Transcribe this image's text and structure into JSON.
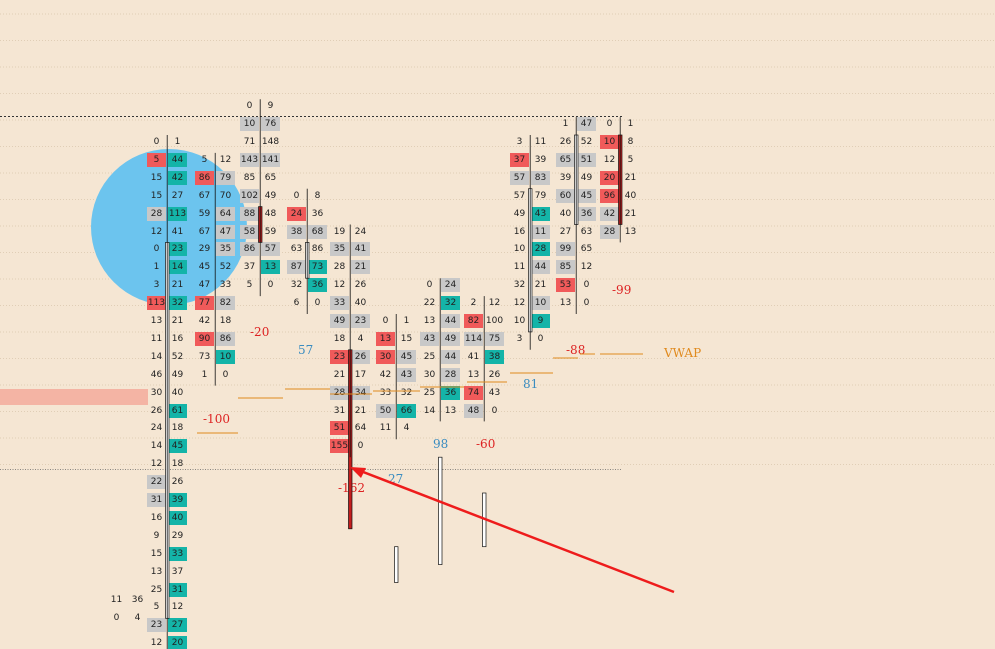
{
  "colors": {
    "background": "#f5e6d3",
    "bid_heavy": "#f05a5a",
    "ask_heavy": "#14b4a8",
    "neutral": "#c8c8c8",
    "negative_delta": "#dd2222",
    "positive_delta": "#3a8cc0",
    "vwap": "#e08a1e",
    "arrow": "#ee1c1c",
    "circle": "#6cc4ee",
    "price_band": "#f4b4a4"
  },
  "vwap_label": "VWAP",
  "columns": [
    {
      "id": "c1",
      "rows": [
        {
          "b": "11",
          "a": "36",
          "bs": "",
          "as": ""
        },
        {
          "b": "0",
          "a": "4",
          "bs": "",
          "as": ""
        }
      ],
      "delta": ""
    },
    {
      "id": "c2",
      "rows": [
        {
          "b": "0",
          "a": "1",
          "bs": "",
          "as": ""
        },
        {
          "b": "5",
          "a": "44",
          "bs": "r",
          "as": "t"
        },
        {
          "b": "15",
          "a": "42",
          "bs": "",
          "as": "t"
        },
        {
          "b": "15",
          "a": "27",
          "bs": "",
          "as": ""
        },
        {
          "b": "28",
          "a": "113",
          "bs": "g",
          "as": "t"
        },
        {
          "b": "12",
          "a": "41",
          "bs": "",
          "as": ""
        },
        {
          "b": "0",
          "a": "23",
          "bs": "",
          "as": "t"
        },
        {
          "b": "1",
          "a": "14",
          "bs": "",
          "as": "t"
        },
        {
          "b": "3",
          "a": "21",
          "bs": "",
          "as": ""
        },
        {
          "b": "113",
          "a": "32",
          "bs": "r",
          "as": "t"
        },
        {
          "b": "13",
          "a": "21",
          "bs": "",
          "as": ""
        },
        {
          "b": "11",
          "a": "16",
          "bs": "",
          "as": ""
        },
        {
          "b": "14",
          "a": "52",
          "bs": "",
          "as": ""
        },
        {
          "b": "46",
          "a": "49",
          "bs": "",
          "as": ""
        },
        {
          "b": "30",
          "a": "40",
          "bs": "",
          "as": ""
        },
        {
          "b": "26",
          "a": "61",
          "bs": "",
          "as": "t"
        },
        {
          "b": "24",
          "a": "18",
          "bs": "",
          "as": ""
        },
        {
          "b": "14",
          "a": "45",
          "bs": "",
          "as": "t"
        },
        {
          "b": "12",
          "a": "18",
          "bs": "",
          "as": ""
        },
        {
          "b": "22",
          "a": "26",
          "bs": "g",
          "as": ""
        },
        {
          "b": "31",
          "a": "39",
          "bs": "g",
          "as": "t"
        },
        {
          "b": "16",
          "a": "40",
          "bs": "",
          "as": "t"
        },
        {
          "b": "9",
          "a": "29",
          "bs": "",
          "as": ""
        },
        {
          "b": "15",
          "a": "33",
          "bs": "",
          "as": "t"
        },
        {
          "b": "13",
          "a": "37",
          "bs": "",
          "as": ""
        },
        {
          "b": "25",
          "a": "31",
          "bs": "",
          "as": "t"
        },
        {
          "b": "5",
          "a": "12",
          "bs": "",
          "as": ""
        },
        {
          "b": "23",
          "a": "27",
          "bs": "g",
          "as": "t"
        },
        {
          "b": "12",
          "a": "20",
          "bs": "",
          "as": "t"
        }
      ],
      "delta": "-100"
    },
    {
      "id": "c3",
      "rows": [
        {
          "b": "5",
          "a": "12",
          "bs": "",
          "as": ""
        },
        {
          "b": "86",
          "a": "79",
          "bs": "r",
          "as": "g"
        },
        {
          "b": "67",
          "a": "70",
          "bs": "",
          "as": ""
        },
        {
          "b": "59",
          "a": "64",
          "bs": "",
          "as": "g"
        },
        {
          "b": "67",
          "a": "47",
          "bs": "",
          "as": "g"
        },
        {
          "b": "29",
          "a": "35",
          "bs": "",
          "as": "g"
        },
        {
          "b": "45",
          "a": "52",
          "bs": "",
          "as": ""
        },
        {
          "b": "47",
          "a": "33",
          "bs": "",
          "as": ""
        },
        {
          "b": "77",
          "a": "82",
          "bs": "r",
          "as": "g"
        },
        {
          "b": "42",
          "a": "18",
          "bs": "",
          "as": ""
        },
        {
          "b": "90",
          "a": "86",
          "bs": "r",
          "as": "g"
        },
        {
          "b": "73",
          "a": "10",
          "bs": "",
          "as": "t"
        },
        {
          "b": "1",
          "a": "0",
          "bs": "",
          "as": ""
        }
      ],
      "delta": "-20"
    },
    {
      "id": "c4",
      "rows": [
        {
          "b": "0",
          "a": "9",
          "bs": "",
          "as": ""
        },
        {
          "b": "10",
          "a": "76",
          "bs": "g",
          "as": "g"
        },
        {
          "b": "71",
          "a": "148",
          "bs": "",
          "as": ""
        },
        {
          "b": "143",
          "a": "141",
          "bs": "g",
          "as": "g"
        },
        {
          "b": "85",
          "a": "65",
          "bs": "",
          "as": ""
        },
        {
          "b": "102",
          "a": "49",
          "bs": "g",
          "as": ""
        },
        {
          "b": "88",
          "a": "48",
          "bs": "g",
          "as": ""
        },
        {
          "b": "58",
          "a": "59",
          "bs": "g",
          "as": ""
        },
        {
          "b": "86",
          "a": "57",
          "bs": "g",
          "as": "g"
        },
        {
          "b": "37",
          "a": "13",
          "bs": "",
          "as": "t"
        },
        {
          "b": "5",
          "a": "0",
          "bs": "",
          "as": ""
        }
      ],
      "delta": "57"
    },
    {
      "id": "c5",
      "rows": [
        {
          "b": "0",
          "a": "8",
          "bs": "",
          "as": ""
        },
        {
          "b": "24",
          "a": "36",
          "bs": "r",
          "as": ""
        },
        {
          "b": "38",
          "a": "68",
          "bs": "g",
          "as": "g"
        },
        {
          "b": "63",
          "a": "86",
          "bs": "",
          "as": ""
        },
        {
          "b": "87",
          "a": "73",
          "bs": "g",
          "as": "t"
        },
        {
          "b": "32",
          "a": "36",
          "bs": "",
          "as": "t"
        },
        {
          "b": "6",
          "a": "0",
          "bs": "",
          "as": ""
        }
      ],
      "delta": ""
    },
    {
      "id": "c6",
      "rows": [
        {
          "b": "19",
          "a": "24",
          "bs": "",
          "as": ""
        },
        {
          "b": "35",
          "a": "41",
          "bs": "g",
          "as": "g"
        },
        {
          "b": "28",
          "a": "21",
          "bs": "",
          "as": "g"
        },
        {
          "b": "12",
          "a": "26",
          "bs": "",
          "as": ""
        },
        {
          "b": "33",
          "a": "40",
          "bs": "g",
          "as": ""
        },
        {
          "b": "49",
          "a": "23",
          "bs": "g",
          "as": "g"
        },
        {
          "b": "18",
          "a": "4",
          "bs": "",
          "as": ""
        },
        {
          "b": "23",
          "a": "26",
          "bs": "r",
          "as": "g"
        },
        {
          "b": "21",
          "a": "17",
          "bs": "",
          "as": ""
        },
        {
          "b": "28",
          "a": "34",
          "bs": "g",
          "as": "g"
        },
        {
          "b": "31",
          "a": "21",
          "bs": "",
          "as": ""
        },
        {
          "b": "51",
          "a": "64",
          "bs": "r",
          "as": ""
        },
        {
          "b": "155",
          "a": "0",
          "bs": "r",
          "as": ""
        }
      ],
      "delta": "-162"
    },
    {
      "id": "c7",
      "rows": [
        {
          "b": "0",
          "a": "1",
          "bs": "",
          "as": ""
        },
        {
          "b": "13",
          "a": "15",
          "bs": "r",
          "as": ""
        },
        {
          "b": "30",
          "a": "45",
          "bs": "r",
          "as": "g"
        },
        {
          "b": "42",
          "a": "43",
          "bs": "",
          "as": "g"
        },
        {
          "b": "33",
          "a": "32",
          "bs": "",
          "as": ""
        },
        {
          "b": "50",
          "a": "66",
          "bs": "g",
          "as": "t"
        },
        {
          "b": "11",
          "a": "4",
          "bs": "",
          "as": ""
        }
      ],
      "delta": "27"
    },
    {
      "id": "c8",
      "rows": [
        {
          "b": "0",
          "a": "24",
          "bs": "",
          "as": "g"
        },
        {
          "b": "22",
          "a": "32",
          "bs": "",
          "as": "t"
        },
        {
          "b": "13",
          "a": "44",
          "bs": "",
          "as": "g"
        },
        {
          "b": "43",
          "a": "49",
          "bs": "g",
          "as": "g"
        },
        {
          "b": "25",
          "a": "44",
          "bs": "",
          "as": "g"
        },
        {
          "b": "30",
          "a": "28",
          "bs": "",
          "as": "g"
        },
        {
          "b": "25",
          "a": "36",
          "bs": "",
          "as": "t"
        },
        {
          "b": "14",
          "a": "13",
          "bs": "",
          "as": ""
        }
      ],
      "delta": "98"
    },
    {
      "id": "c9",
      "rows": [
        {
          "b": "2",
          "a": "12",
          "bs": "",
          "as": ""
        },
        {
          "b": "82",
          "a": "100",
          "bs": "r",
          "as": ""
        },
        {
          "b": "114",
          "a": "75",
          "bs": "g",
          "as": "g"
        },
        {
          "b": "41",
          "a": "38",
          "bs": "",
          "as": "t"
        },
        {
          "b": "13",
          "a": "26",
          "bs": "",
          "as": ""
        },
        {
          "b": "74",
          "a": "43",
          "bs": "r",
          "as": ""
        },
        {
          "b": "48",
          "a": "0",
          "bs": "g",
          "as": ""
        }
      ],
      "delta": "-60"
    },
    {
      "id": "c10",
      "rows": [
        {
          "b": "3",
          "a": "11",
          "bs": "",
          "as": ""
        },
        {
          "b": "37",
          "a": "39",
          "bs": "r",
          "as": ""
        },
        {
          "b": "57",
          "a": "83",
          "bs": "g",
          "as": "g"
        },
        {
          "b": "57",
          "a": "79",
          "bs": "",
          "as": ""
        },
        {
          "b": "49",
          "a": "43",
          "bs": "",
          "as": "t"
        },
        {
          "b": "16",
          "a": "11",
          "bs": "",
          "as": "g"
        },
        {
          "b": "10",
          "a": "28",
          "bs": "",
          "as": "t"
        },
        {
          "b": "11",
          "a": "44",
          "bs": "",
          "as": "g"
        },
        {
          "b": "32",
          "a": "21",
          "bs": "",
          "as": ""
        },
        {
          "b": "12",
          "a": "10",
          "bs": "",
          "as": "g"
        },
        {
          "b": "10",
          "a": "9",
          "bs": "",
          "as": "t"
        },
        {
          "b": "3",
          "a": "0",
          "bs": "",
          "as": ""
        }
      ],
      "delta": "81"
    },
    {
      "id": "c11",
      "rows": [
        {
          "b": "1",
          "a": "47",
          "bs": "",
          "as": "g"
        },
        {
          "b": "26",
          "a": "52",
          "bs": "",
          "as": ""
        },
        {
          "b": "65",
          "a": "51",
          "bs": "g",
          "as": "g"
        },
        {
          "b": "39",
          "a": "49",
          "bs": "",
          "as": ""
        },
        {
          "b": "60",
          "a": "45",
          "bs": "g",
          "as": "g"
        },
        {
          "b": "40",
          "a": "36",
          "bs": "",
          "as": "g"
        },
        {
          "b": "27",
          "a": "63",
          "bs": "",
          "as": ""
        },
        {
          "b": "99",
          "a": "65",
          "bs": "g",
          "as": ""
        },
        {
          "b": "85",
          "a": "12",
          "bs": "g",
          "as": ""
        },
        {
          "b": "53",
          "a": "0",
          "bs": "r",
          "as": ""
        },
        {
          "b": "13",
          "a": "0",
          "bs": "",
          "as": ""
        }
      ],
      "delta": "-88"
    },
    {
      "id": "c12",
      "rows": [
        {
          "b": "0",
          "a": "1",
          "bs": "",
          "as": ""
        },
        {
          "b": "10",
          "a": "8",
          "bs": "r",
          "as": ""
        },
        {
          "b": "12",
          "a": "5",
          "bs": "",
          "as": ""
        },
        {
          "b": "20",
          "a": "21",
          "bs": "r",
          "as": ""
        },
        {
          "b": "96",
          "a": "40",
          "bs": "r",
          "as": ""
        },
        {
          "b": "42",
          "a": "21",
          "bs": "g",
          "as": ""
        },
        {
          "b": "28",
          "a": "13",
          "bs": "g",
          "as": ""
        }
      ],
      "delta": "-99"
    }
  ]
}
